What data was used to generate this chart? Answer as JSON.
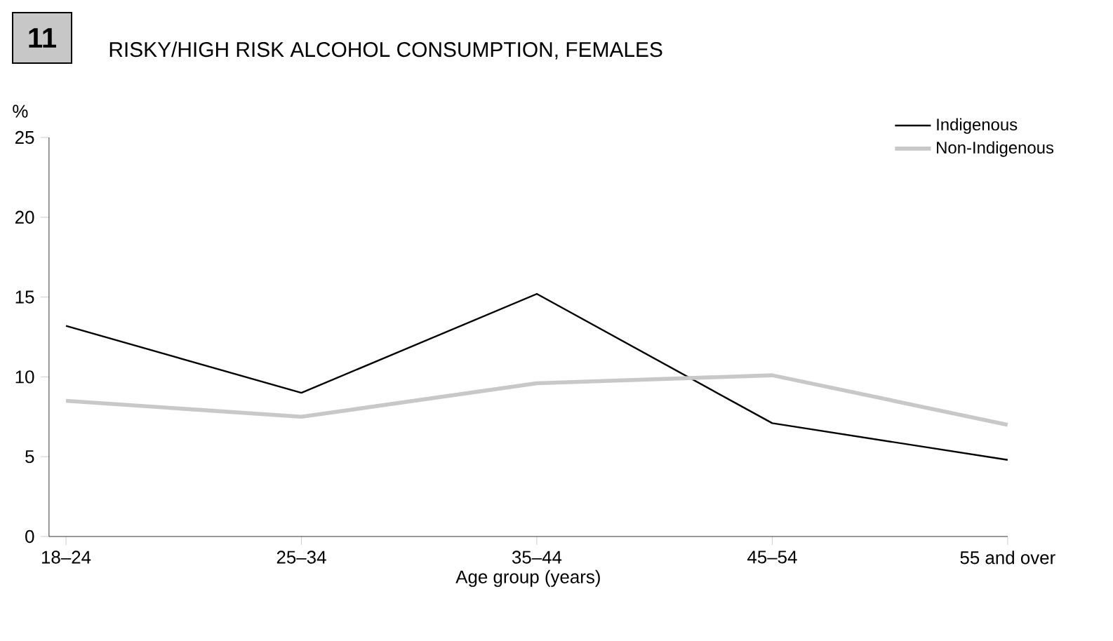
{
  "chart_data": {
    "type": "line",
    "title": "RISKY/HIGH RISK ALCOHOL CONSUMPTION, FEMALES",
    "annotations": [
      "11"
    ],
    "xlabel": "Age group (years)",
    "ylabel": "%",
    "categories": [
      "18–24",
      "25–34",
      "35–44",
      "45–54",
      "55 and over"
    ],
    "series": [
      {
        "name": "Indigenous",
        "color": "#000000",
        "values": [
          13.2,
          9.0,
          15.2,
          7.1,
          4.8
        ]
      },
      {
        "name": "Non-Indigenous",
        "color": "#c8c8c8",
        "values": [
          8.5,
          7.5,
          9.6,
          10.1,
          7.0
        ]
      }
    ],
    "ylim": [
      0,
      25
    ],
    "yticks": [
      0,
      5,
      10,
      15,
      20,
      25
    ],
    "grid": false,
    "legend": "top right",
    "line_style": "solid",
    "marker": "none"
  }
}
